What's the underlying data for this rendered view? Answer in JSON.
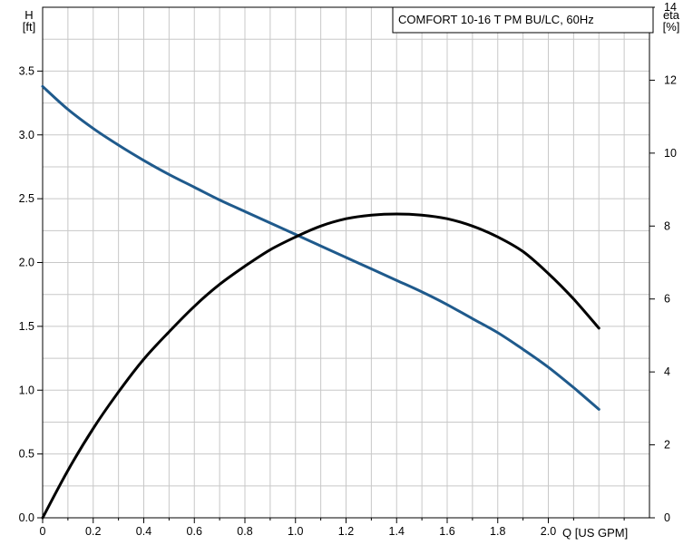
{
  "colors": {
    "head_curve": "#1f5a8c",
    "efficiency_curve": "#000000",
    "grid": "#c8c8c8",
    "axis": "#000000"
  },
  "legend": {
    "text": "COMFORT 10-16 T PM BU/LC, 60Hz"
  },
  "chart_data": {
    "type": "line",
    "title": "COMFORT 10-16 T PM BU/LC, 60Hz",
    "xlabel": "Q [US GPM]",
    "ylabel_left": "H\n[ft]",
    "ylabel_right": "eta\n[%]",
    "xlim": [
      0,
      2.4
    ],
    "ylim_left": [
      0,
      4.0
    ],
    "ylim_right": [
      0,
      14
    ],
    "x_ticks": [
      "0",
      "0.2",
      "0.4",
      "0.6",
      "0.8",
      "1.0",
      "1.2",
      "1.4",
      "1.6",
      "1.8",
      "2.0"
    ],
    "y_ticks_left": [
      "0.0",
      "0.5",
      "1.0",
      "1.5",
      "2.0",
      "2.5",
      "3.0",
      "3.5"
    ],
    "y_ticks_right": [
      "0",
      "2",
      "4",
      "6",
      "8",
      "10",
      "12",
      "14"
    ],
    "grid": true,
    "legend_position": "top-right",
    "series": [
      {
        "axis": "left",
        "x": [
          0,
          0.1,
          0.2,
          0.3,
          0.4,
          0.5,
          0.6,
          0.7,
          0.8,
          0.9,
          1.0,
          1.1,
          1.2,
          1.3,
          1.4,
          1.5,
          1.6,
          1.7,
          1.8,
          1.9,
          2.0,
          2.1,
          2.2
        ],
        "y": [
          3.38,
          3.2,
          3.05,
          2.92,
          2.8,
          2.69,
          2.59,
          2.49,
          2.4,
          2.31,
          2.22,
          2.13,
          2.04,
          1.95,
          1.86,
          1.77,
          1.67,
          1.56,
          1.45,
          1.32,
          1.18,
          1.02,
          0.85
        ]
      },
      {
        "axis": "right",
        "x": [
          0,
          0.1,
          0.2,
          0.3,
          0.4,
          0.5,
          0.6,
          0.7,
          0.8,
          0.9,
          1.0,
          1.1,
          1.2,
          1.3,
          1.4,
          1.5,
          1.6,
          1.7,
          1.8,
          1.9,
          2.0,
          2.1,
          2.2
        ],
        "y": [
          0,
          1.3,
          2.45,
          3.45,
          4.35,
          5.1,
          5.8,
          6.4,
          6.9,
          7.35,
          7.7,
          8.0,
          8.2,
          8.3,
          8.33,
          8.3,
          8.2,
          8.0,
          7.7,
          7.3,
          6.7,
          6.0,
          5.2
        ]
      }
    ]
  }
}
